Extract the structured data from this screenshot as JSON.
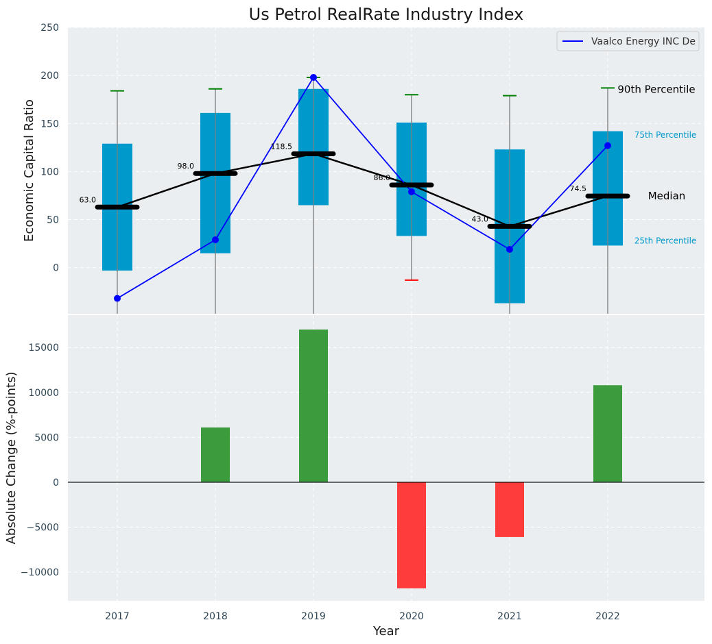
{
  "chart_data": [
    {
      "type": "box",
      "title": "Us Petrol RealRate Industry Index",
      "ylabel": "Economic Capital Ratio",
      "ylim": [
        -48,
        250
      ],
      "yticks": [
        0,
        50,
        100,
        150,
        200,
        250
      ],
      "categories": [
        "2017",
        "2018",
        "2019",
        "2020",
        "2021",
        "2022"
      ],
      "boxes": [
        {
          "year": "2017",
          "p10": -48,
          "p25": -3,
          "median": 63.0,
          "median_label": "63.0",
          "p75": 129,
          "p90": 184
        },
        {
          "year": "2018",
          "p10": -48,
          "p25": 15,
          "median": 98.0,
          "median_label": "98.0",
          "p75": 161,
          "p90": 186
        },
        {
          "year": "2019",
          "p10": -48,
          "p25": 65,
          "median": 118.5,
          "median_label": "118.5",
          "p75": 186,
          "p90": 198
        },
        {
          "year": "2020",
          "p10": -13,
          "p25": 33,
          "median": 86.0,
          "median_label": "86.0",
          "p75": 151,
          "p90": 180
        },
        {
          "year": "2021",
          "p10": -48,
          "p25": -37,
          "median": 43.0,
          "median_label": "43.0",
          "p75": 123,
          "p90": 179
        },
        {
          "year": "2022",
          "p10": -48,
          "p25": 23,
          "median": 74.5,
          "median_label": "74.5",
          "p75": 142,
          "p90": 187
        }
      ],
      "series": [
        {
          "name": "Vaalco Energy INC De",
          "color": "#0000ff",
          "values": [
            -32,
            29,
            198,
            79,
            19,
            127
          ]
        }
      ],
      "annotations": {
        "p90": "90th Percentile",
        "p75": "75th Percentile",
        "median": "Median",
        "p25": "25th Percentile"
      },
      "legend": "top-right"
    },
    {
      "type": "bar",
      "xlabel": "Year",
      "ylabel": "Absolute Change (%-points)",
      "ylim": [
        -13200,
        18600
      ],
      "yticks": [
        -10000,
        -5000,
        0,
        5000,
        10000,
        15000
      ],
      "ytick_labels": [
        "−10000",
        "−5000",
        "0",
        "5000",
        "10000",
        "15000"
      ],
      "categories": [
        "2017",
        "2018",
        "2019",
        "2020",
        "2021",
        "2022"
      ],
      "values": [
        0,
        6100,
        17000,
        -11800,
        -6100,
        10800
      ]
    }
  ],
  "colors": {
    "plot_bg": "#eaeef0",
    "grid": "#ffffff",
    "box": "#0099cc",
    "whisker": "#808080",
    "cap_normal": "#008000",
    "cap_low": "#ff0000",
    "median": "#000000",
    "series": "#0000ff",
    "bar_positive": "#3c9b3c",
    "bar_negative": "#ff3c3c",
    "axis_text": "#2f4553",
    "annotation_box": "#0099cc",
    "annotation_text": "#000000"
  }
}
